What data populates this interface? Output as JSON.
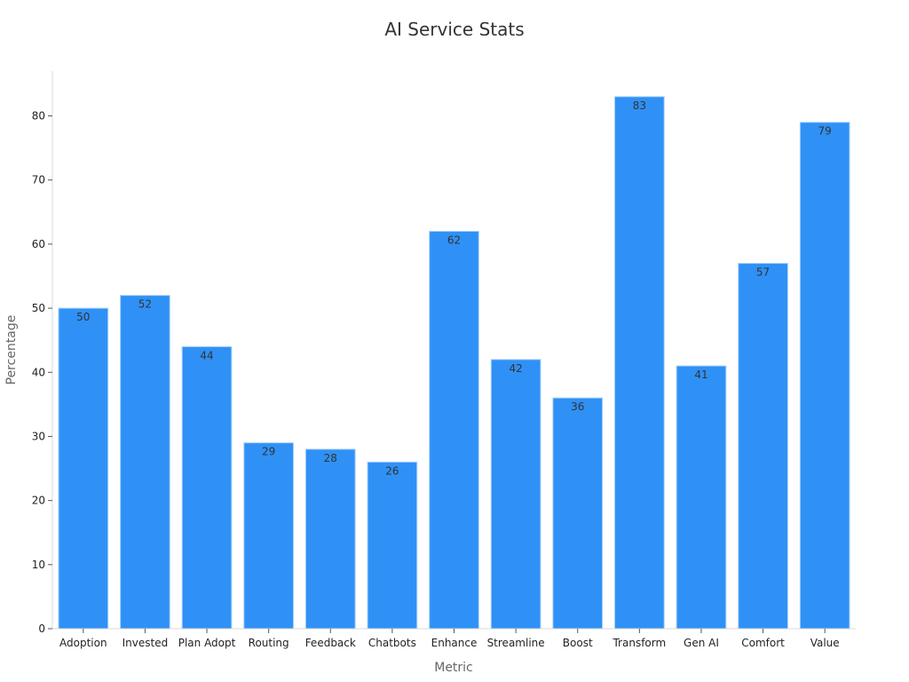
{
  "chart_data": {
    "type": "bar",
    "title": "AI Service Stats",
    "xlabel": "Metric",
    "ylabel": "Percentage",
    "categories": [
      "Adoption",
      "Invested",
      "Plan Adopt",
      "Routing",
      "Feedback",
      "Chatbots",
      "Enhance",
      "Streamline",
      "Boost",
      "Transform",
      "Gen AI",
      "Comfort",
      "Value"
    ],
    "values": [
      50,
      52,
      44,
      29,
      28,
      26,
      62,
      42,
      36,
      83,
      41,
      57,
      79
    ],
    "ylim": [
      0,
      87
    ],
    "yticks": [
      0,
      10,
      20,
      30,
      40,
      50,
      60,
      70,
      80
    ],
    "grid": false,
    "legend": "none",
    "bar_color": "#2f91f6",
    "bar_edge_color": "#a9d0fb"
  }
}
